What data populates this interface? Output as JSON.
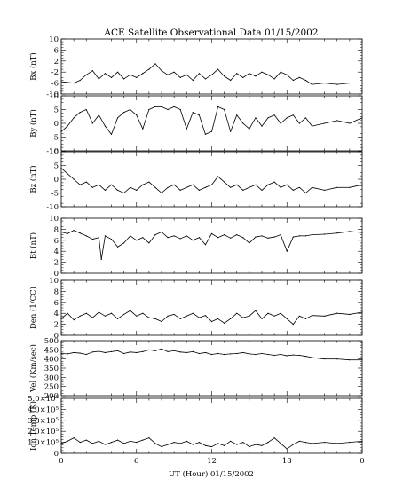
{
  "figure": {
    "title": "ACE Satellite Observational Data   01/15/2002",
    "xlabel": "UT (Hour)   01/15/2002",
    "x_ticks": [
      "0",
      "6",
      "12",
      "18",
      "0"
    ]
  },
  "chart_data": [
    {
      "type": "line",
      "ylabel": "Bx (nT)",
      "ylim": [
        -10,
        10
      ],
      "y_ticks": [
        "10",
        "6",
        "2",
        "-2",
        "-6",
        "-10"
      ],
      "xlim": [
        0,
        24
      ],
      "x": [
        0,
        1,
        1.5,
        2,
        2.5,
        3,
        3.5,
        4,
        4.5,
        5,
        5.5,
        6,
        6.5,
        7,
        7.5,
        8,
        8.5,
        9,
        9.5,
        10,
        10.5,
        11,
        11.5,
        12,
        12.5,
        13,
        13.5,
        14,
        14.5,
        15,
        15.5,
        16,
        16.5,
        17,
        17.5,
        18,
        18.5,
        19,
        19.5,
        20,
        21,
        22,
        23,
        24
      ],
      "y": [
        -5.5,
        -6,
        -5,
        -3,
        -1.5,
        -4.5,
        -2.5,
        -4,
        -2,
        -4.5,
        -3,
        -4,
        -2.5,
        -1,
        1,
        -1.5,
        -3,
        -2,
        -4,
        -3,
        -5,
        -2.5,
        -4.5,
        -3,
        -1,
        -3.5,
        -5,
        -2.5,
        -4,
        -2.5,
        -3.5,
        -2,
        -3,
        -4.5,
        -2,
        -3,
        -5,
        -4,
        -5,
        -6.5,
        -6,
        -6.5,
        -6,
        -6
      ]
    },
    {
      "type": "line",
      "ylabel": "By (nT)",
      "ylim": [
        -10,
        10
      ],
      "y_ticks": [
        "10",
        "5",
        "0",
        "-5",
        "-10"
      ],
      "xlim": [
        0,
        24
      ],
      "x": [
        0,
        0.5,
        1,
        1.5,
        2,
        2.5,
        3,
        3.5,
        4,
        4.5,
        5,
        5.5,
        6,
        6.5,
        7,
        7.5,
        8,
        8.5,
        9,
        9.5,
        10,
        10.5,
        11,
        11.5,
        12,
        12.5,
        13,
        13.5,
        14,
        14.5,
        15,
        15.5,
        16,
        16.5,
        17,
        17.5,
        18,
        18.5,
        19,
        19.5,
        20,
        21,
        22,
        23,
        24
      ],
      "y": [
        -3,
        -1,
        2,
        4,
        5,
        0,
        3,
        -1,
        -4,
        2,
        4,
        5,
        3,
        -2,
        5,
        6,
        6,
        5,
        6,
        5,
        -2,
        4,
        3,
        -4,
        -3,
        6,
        5,
        -3,
        3,
        0,
        -2,
        2,
        -1,
        2,
        3,
        0,
        2,
        3,
        0,
        2,
        -1,
        0,
        1,
        0,
        2
      ]
    },
    {
      "type": "line",
      "ylabel": "Bz (nT)",
      "ylim": [
        -10,
        10
      ],
      "y_ticks": [
        "10",
        "5",
        "0",
        "-5",
        "-10"
      ],
      "xlim": [
        0,
        24
      ],
      "x": [
        0,
        0.5,
        1,
        1.5,
        2,
        2.5,
        3,
        3.5,
        4,
        4.5,
        5,
        5.5,
        6,
        6.5,
        7,
        7.5,
        8,
        8.5,
        9,
        9.5,
        10,
        10.5,
        11,
        11.5,
        12,
        12.5,
        13,
        13.5,
        14,
        14.5,
        15,
        15.5,
        16,
        16.5,
        17,
        17.5,
        18,
        18.5,
        19,
        19.5,
        20,
        21,
        22,
        23,
        24
      ],
      "y": [
        4,
        2,
        0,
        -2,
        -1,
        -3,
        -2,
        -4,
        -2,
        -4,
        -5,
        -3,
        -4,
        -2,
        -1,
        -3,
        -5,
        -3,
        -2,
        -4,
        -3,
        -2,
        -4,
        -3,
        -2,
        1,
        -1,
        -3,
        -2,
        -4,
        -3,
        -2,
        -4,
        -2,
        -1,
        -3,
        -2,
        -4,
        -3,
        -5,
        -3,
        -4,
        -3,
        -3,
        -2
      ]
    },
    {
      "type": "line",
      "ylabel": "Bt (nT)",
      "ylim": [
        0,
        10
      ],
      "y_ticks": [
        "10",
        "8",
        "6",
        "4",
        "2",
        "0"
      ],
      "xlim": [
        0,
        24
      ],
      "x": [
        0,
        0.5,
        1,
        1.5,
        2,
        2.5,
        3,
        3.2,
        3.5,
        4,
        4.5,
        5,
        5.5,
        6,
        6.5,
        7,
        7.5,
        8,
        8.5,
        9,
        9.5,
        10,
        10.5,
        11,
        11.5,
        12,
        12.5,
        13,
        13.5,
        14,
        14.5,
        15,
        15.5,
        16,
        16.5,
        17,
        17.5,
        18,
        18.5,
        19,
        19.5,
        20,
        21,
        22,
        23,
        24
      ],
      "y": [
        7.5,
        7.2,
        7.8,
        7.3,
        6.8,
        6.2,
        6.5,
        2.5,
        6.8,
        6.2,
        4.8,
        5.5,
        6.8,
        6,
        6.5,
        5.5,
        7,
        7.5,
        6.5,
        6.8,
        6.3,
        6.8,
        6,
        6.5,
        5.2,
        7.2,
        6.5,
        7,
        6.4,
        7,
        6.5,
        5.5,
        6.6,
        6.8,
        6.4,
        6.6,
        7,
        4,
        6.6,
        6.8,
        6.8,
        7,
        7.1,
        7.3,
        7.6,
        7.4
      ]
    },
    {
      "type": "line",
      "ylabel": "Den (1/CC)",
      "ylim": [
        0,
        10
      ],
      "y_ticks": [
        "10",
        "8",
        "6",
        "4",
        "2",
        "0"
      ],
      "xlim": [
        0,
        24
      ],
      "x": [
        0,
        0.5,
        1,
        1.5,
        2,
        2.5,
        3,
        3.5,
        4,
        4.5,
        5,
        5.5,
        6,
        6.5,
        7,
        7.5,
        8,
        8.5,
        9,
        9.5,
        10,
        10.5,
        11,
        11.5,
        12,
        12.5,
        13,
        13.5,
        14,
        14.5,
        15,
        15.5,
        16,
        16.5,
        17,
        17.5,
        18,
        18.5,
        19,
        19.5,
        20,
        21,
        22,
        23,
        24
      ],
      "y": [
        3,
        4,
        2.8,
        3.5,
        4,
        3.2,
        4.2,
        3.5,
        4,
        3,
        3.8,
        4.5,
        3.5,
        4,
        3.2,
        3,
        2.5,
        3.5,
        3.8,
        3,
        3.5,
        4,
        3.2,
        3.6,
        2.5,
        3,
        2.2,
        3,
        4,
        3.2,
        3.5,
        4.5,
        3,
        4,
        3.5,
        4,
        3,
        2,
        3.5,
        3,
        3.6,
        3.5,
        4,
        3.8,
        4.2
      ]
    },
    {
      "type": "line",
      "ylabel": "Vel (Km/sec)",
      "ylim": [
        200,
        500
      ],
      "y_ticks": [
        "500",
        "450",
        "400",
        "350",
        "300",
        "250",
        "200"
      ],
      "xlim": [
        0,
        24
      ],
      "x": [
        0,
        0.5,
        1,
        1.5,
        2,
        2.5,
        3,
        3.5,
        4,
        4.5,
        5,
        5.5,
        6,
        6.5,
        7,
        7.5,
        8,
        8.5,
        9,
        9.5,
        10,
        10.5,
        11,
        11.5,
        12,
        12.5,
        13,
        13.5,
        14,
        14.5,
        15,
        15.5,
        16,
        16.5,
        17,
        17.5,
        18,
        18.5,
        19,
        19.5,
        20,
        21,
        22,
        23,
        24
      ],
      "y": [
        430,
        428,
        435,
        432,
        425,
        438,
        442,
        435,
        440,
        445,
        430,
        438,
        435,
        440,
        450,
        445,
        455,
        440,
        445,
        438,
        435,
        440,
        430,
        435,
        425,
        430,
        425,
        428,
        430,
        435,
        428,
        425,
        430,
        425,
        420,
        425,
        418,
        422,
        420,
        415,
        408,
        400,
        400,
        395,
        395
      ]
    },
    {
      "type": "line",
      "ylabel": "Ion Temp (K)",
      "ylim": [
        0,
        500000
      ],
      "y_ticks": [
        "5.0×10⁵",
        "4.0×10⁵",
        "3.0×10⁵",
        "2.0×10⁵",
        "1.0×10⁵",
        "0"
      ],
      "xlim": [
        0,
        24
      ],
      "x": [
        0,
        0.5,
        1,
        1.5,
        2,
        2.5,
        3,
        3.5,
        4,
        4.5,
        5,
        5.5,
        6,
        6.5,
        7,
        7.5,
        8,
        8.5,
        9,
        9.5,
        10,
        10.5,
        11,
        11.5,
        12,
        12.5,
        13,
        13.5,
        14,
        14.5,
        15,
        15.5,
        16,
        16.5,
        17,
        17.5,
        18,
        18.5,
        19,
        19.5,
        20,
        21,
        22,
        23,
        24
      ],
      "y": [
        90000,
        110000,
        140000,
        100000,
        120000,
        90000,
        110000,
        80000,
        100000,
        120000,
        90000,
        110000,
        100000,
        120000,
        140000,
        90000,
        60000,
        80000,
        100000,
        90000,
        110000,
        80000,
        100000,
        70000,
        60000,
        90000,
        70000,
        110000,
        80000,
        100000,
        60000,
        80000,
        70000,
        100000,
        140000,
        90000,
        40000,
        80000,
        110000,
        100000,
        90000,
        100000,
        90000,
        100000,
        110000
      ]
    }
  ]
}
